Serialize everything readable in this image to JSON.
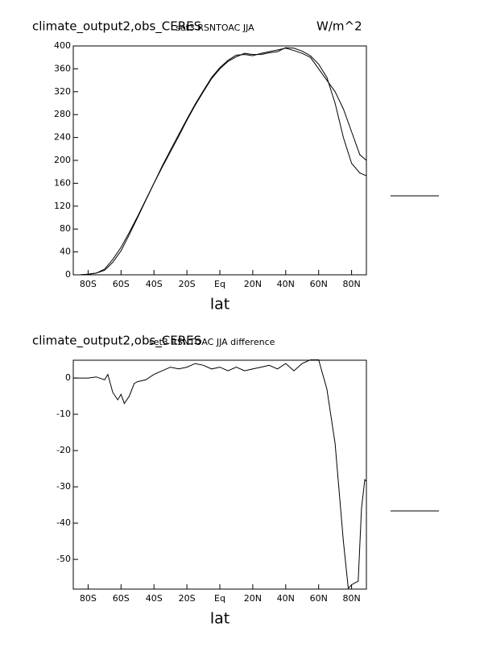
{
  "chart_data": [
    {
      "type": "line",
      "title": "climate_output2,obs_CERES",
      "subtitle": "set3 RSNTOAC JJA",
      "units": "W/m^2",
      "xlabel": "lat",
      "x": [
        -89,
        -85,
        -80,
        -75,
        -70,
        -65,
        -60,
        -55,
        -50,
        -45,
        -40,
        -35,
        -30,
        -25,
        -20,
        -15,
        -10,
        -5,
        0,
        5,
        10,
        15,
        20,
        25,
        30,
        35,
        40,
        45,
        50,
        55,
        60,
        65,
        70,
        75,
        80,
        85,
        89
      ],
      "xlim": [
        -89,
        89
      ],
      "xticks": [
        {
          "value": -80,
          "label": "80S"
        },
        {
          "value": -60,
          "label": "60S"
        },
        {
          "value": -40,
          "label": "40S"
        },
        {
          "value": -20,
          "label": "20S"
        },
        {
          "value": 0,
          "label": "Eq"
        },
        {
          "value": 20,
          "label": "20N"
        },
        {
          "value": 40,
          "label": "40N"
        },
        {
          "value": 60,
          "label": "60N"
        },
        {
          "value": 80,
          "label": "80N"
        }
      ],
      "ylim": [
        0,
        400
      ],
      "yticks": [
        0,
        40,
        80,
        120,
        160,
        200,
        240,
        280,
        320,
        360,
        400
      ],
      "series": [
        {
          "color": "#000000",
          "values": [
            0,
            0,
            1,
            3,
            8,
            22,
            42,
            70,
            100,
            130,
            160,
            190,
            218,
            245,
            272,
            298,
            322,
            345,
            362,
            375,
            384,
            385,
            383,
            387,
            390,
            393,
            396,
            392,
            387,
            380,
            360,
            340,
            320,
            290,
            250,
            210,
            200
          ]
        },
        {
          "color": "#000000",
          "values": [
            0,
            0,
            1,
            3,
            10,
            27,
            48,
            74,
            102,
            131,
            160,
            188,
            215,
            242,
            270,
            296,
            320,
            343,
            360,
            373,
            381,
            387,
            385,
            385,
            388,
            390,
            397,
            396,
            391,
            383,
            368,
            345,
            300,
            240,
            195,
            178,
            173
          ]
        }
      ]
    },
    {
      "type": "line",
      "title": "climate_output2,obs_CERES",
      "subtitle": "set3 RSNTOAC JJA difference",
      "xlabel": "lat",
      "x": [
        -89,
        -85,
        -80,
        -75,
        -70,
        -68,
        -65,
        -62,
        -60,
        -58,
        -55,
        -52,
        -50,
        -45,
        -40,
        -35,
        -30,
        -25,
        -20,
        -15,
        -10,
        -5,
        0,
        5,
        10,
        15,
        20,
        25,
        30,
        35,
        40,
        45,
        50,
        55,
        60,
        65,
        70,
        75,
        78,
        80,
        84,
        86,
        88,
        89
      ],
      "xlim": [
        -89,
        89
      ],
      "xticks": [
        {
          "value": -80,
          "label": "80S"
        },
        {
          "value": -60,
          "label": "60S"
        },
        {
          "value": -40,
          "label": "40S"
        },
        {
          "value": -20,
          "label": "20S"
        },
        {
          "value": 0,
          "label": "Eq"
        },
        {
          "value": 20,
          "label": "20N"
        },
        {
          "value": 40,
          "label": "40N"
        },
        {
          "value": 60,
          "label": "60N"
        },
        {
          "value": 80,
          "label": "80N"
        }
      ],
      "ylim": [
        -58.2,
        4.9
      ],
      "yticks": [
        0,
        -10,
        -20,
        -30,
        -40,
        -50
      ],
      "series": [
        {
          "color": "#000000",
          "values": [
            0,
            0,
            0,
            0.3,
            -0.5,
            1,
            -4,
            -6,
            -4.5,
            -7,
            -5,
            -1.5,
            -1,
            -0.5,
            1,
            2,
            3,
            2.5,
            3,
            4,
            3.5,
            2.5,
            3,
            2,
            3,
            2,
            2.5,
            3,
            3.5,
            2.5,
            4,
            2,
            4,
            5,
            5,
            -3,
            -18,
            -45,
            -58,
            -57,
            -56,
            -36,
            -28,
            -28.5
          ]
        }
      ]
    }
  ]
}
